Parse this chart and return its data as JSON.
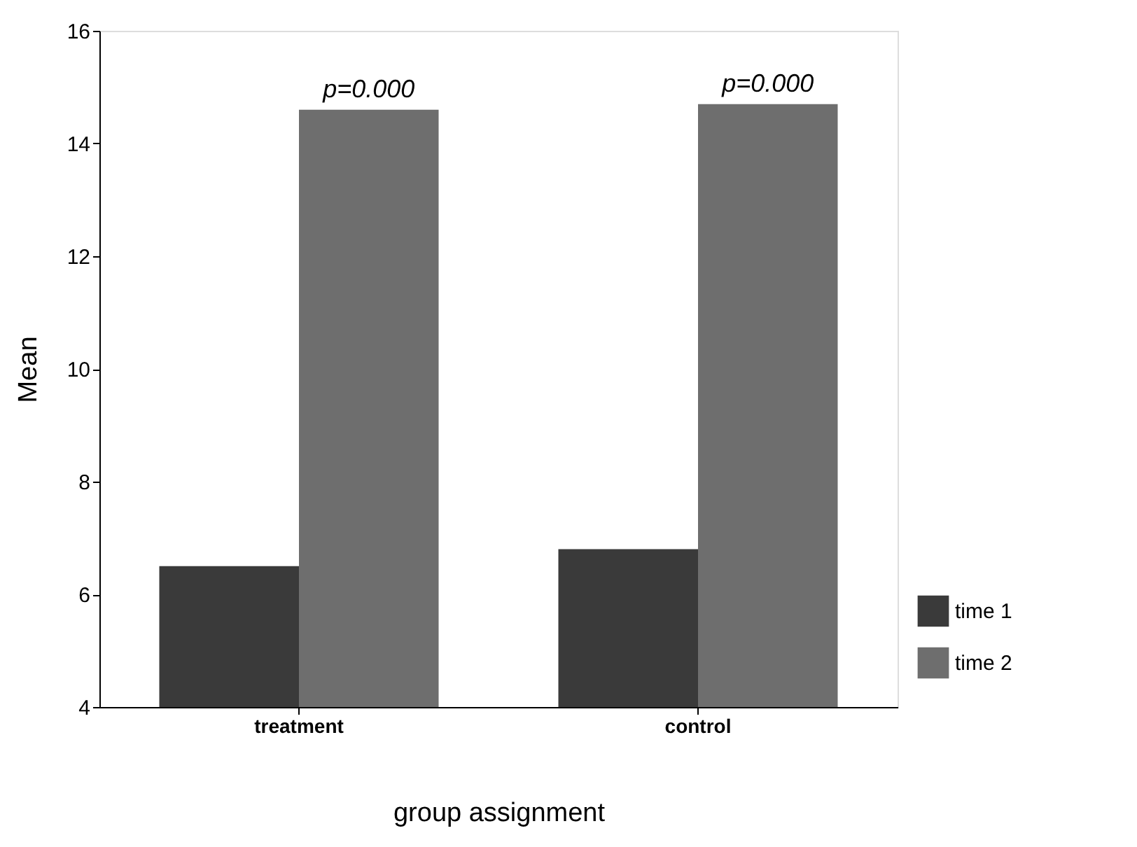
{
  "chart_data": {
    "type": "bar",
    "xlabel": "group assignment",
    "ylabel": "Mean",
    "categories": [
      "treatment",
      "control"
    ],
    "series": [
      {
        "name": "time 1",
        "color": "#3a3a3a",
        "values": [
          6.5,
          6.8
        ]
      },
      {
        "name": "time 2",
        "color": "#6e6e6e",
        "values": [
          14.6,
          14.7
        ]
      }
    ],
    "ylim": [
      4,
      16
    ],
    "yticks": [
      4,
      6,
      8,
      10,
      12,
      14,
      16
    ],
    "grid": false,
    "legend": "bottom right",
    "annotations": [
      {
        "text": "p=0.000",
        "x": "treatment",
        "y": 14.6
      },
      {
        "text": "p=0.000",
        "x": "control",
        "y": 14.7
      }
    ]
  }
}
